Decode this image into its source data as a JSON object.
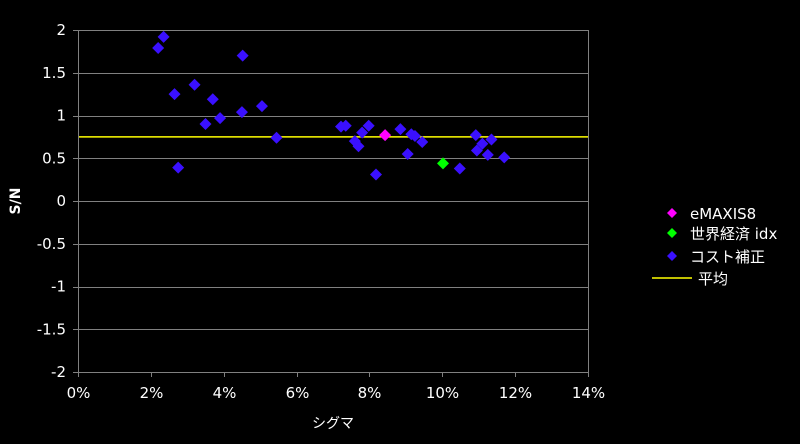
{
  "colors": {
    "background": "#000000",
    "plot_border": "#808080",
    "grid": "#808080",
    "text": "#ffffff",
    "average_line": "#ffff00",
    "emaxis8": "#ff00ff",
    "world_idx": "#00ff00",
    "cost_adjusted": "#3a10ff"
  },
  "chart_data": {
    "type": "scatter",
    "xlabel": "シグマ",
    "ylabel": "S/N",
    "xlim": [
      0,
      0.14
    ],
    "ylim": [
      -2,
      2
    ],
    "x_ticks": [
      "0%",
      "2%",
      "4%",
      "6%",
      "8%",
      "10%",
      "12%",
      "14%"
    ],
    "x_tick_values": [
      0,
      0.02,
      0.04,
      0.06,
      0.08,
      0.1,
      0.12,
      0.14
    ],
    "y_ticks": [
      "2",
      "1.5",
      "1",
      "0.5",
      "0",
      "-0.5",
      "-1",
      "-1.5",
      "-2"
    ],
    "y_tick_values": [
      2,
      1.5,
      1,
      0.5,
      0,
      -0.5,
      -1,
      -1.5,
      -2
    ],
    "grid": "horizontal",
    "legend_position": "right",
    "series": [
      {
        "name": "eMAXIS8",
        "marker": "diamond",
        "color": "#ff00ff",
        "points": [
          [
            0.0843,
            0.77
          ]
        ]
      },
      {
        "name": "世界経済 idx",
        "marker": "diamond",
        "color": "#00ff00",
        "points": [
          [
            0.1002,
            0.44
          ]
        ]
      },
      {
        "name": "コスト補正",
        "marker": "diamond",
        "color": "#3a10ff",
        "points": [
          [
            0.022,
            1.79
          ],
          [
            0.0235,
            1.92
          ],
          [
            0.0265,
            1.25
          ],
          [
            0.0275,
            0.39
          ],
          [
            0.032,
            1.36
          ],
          [
            0.035,
            0.9
          ],
          [
            0.037,
            1.19
          ],
          [
            0.039,
            0.97
          ],
          [
            0.045,
            1.04
          ],
          [
            0.0452,
            1.7
          ],
          [
            0.0505,
            1.11
          ],
          [
            0.0545,
            0.74
          ],
          [
            0.0722,
            0.87
          ],
          [
            0.0735,
            0.88
          ],
          [
            0.076,
            0.7
          ],
          [
            0.077,
            0.64
          ],
          [
            0.078,
            0.8
          ],
          [
            0.0798,
            0.88
          ],
          [
            0.0818,
            0.31
          ],
          [
            0.0885,
            0.84
          ],
          [
            0.0905,
            0.55
          ],
          [
            0.0915,
            0.78
          ],
          [
            0.0925,
            0.76
          ],
          [
            0.0945,
            0.69
          ],
          [
            0.1048,
            0.38
          ],
          [
            0.1092,
            0.77
          ],
          [
            0.1095,
            0.59
          ],
          [
            0.111,
            0.67
          ],
          [
            0.1125,
            0.54
          ],
          [
            0.1135,
            0.72
          ],
          [
            0.117,
            0.51
          ]
        ]
      },
      {
        "name": "平均",
        "type": "hline",
        "color": "#ffff00",
        "y": 0.75
      }
    ]
  }
}
